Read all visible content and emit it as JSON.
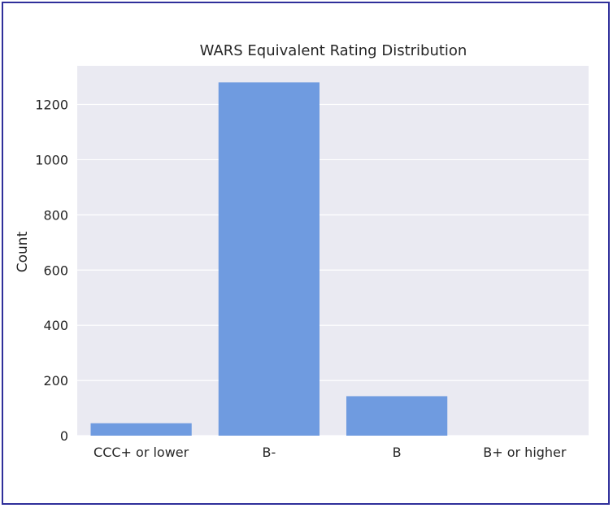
{
  "chart_data": {
    "type": "bar",
    "title": "WARS Equivalent Rating Distribution",
    "xlabel": "",
    "ylabel": "Count",
    "categories": [
      "CCC+ or lower",
      "B-",
      "B",
      "B+ or higher"
    ],
    "values": [
      45,
      1280,
      143,
      0
    ],
    "ylim": [
      0,
      1340
    ],
    "yticks": [
      0,
      200,
      400,
      600,
      800,
      1000,
      1200
    ],
    "grid": true,
    "legend": "none",
    "colors": {
      "bar": "#6f9be0",
      "plot_background": "#eaeaf2",
      "gridline": "#ffffff",
      "frame_border": "#2f2f9a"
    }
  }
}
